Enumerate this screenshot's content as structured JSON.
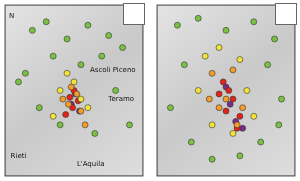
{
  "chart_data": [
    {
      "type": "scatter",
      "tick_labels": false,
      "grid": false,
      "xlim": [
        0,
        100
      ],
      "ylim": [
        0,
        100
      ],
      "annotations": [
        {
          "text": "N",
          "x": 5,
          "y": 93
        },
        {
          "text": "Ascoli Piceno",
          "x": 78,
          "y": 62
        },
        {
          "text": "Teramo",
          "x": 84,
          "y": 45
        },
        {
          "text": "L'Aquila",
          "x": 62,
          "y": 7
        },
        {
          "text": "Rieti",
          "x": 10,
          "y": 12
        }
      ],
      "series": [
        {
          "color": "#7ac143",
          "x": [
            20,
            30,
            45,
            60,
            75,
            85,
            15,
            35,
            70,
            55,
            25,
            80,
            40,
            65,
            90,
            10
          ],
          "values": [
            85,
            90,
            80,
            88,
            82,
            75,
            60,
            70,
            70,
            65,
            40,
            50,
            30,
            25,
            30,
            55
          ]
        },
        {
          "color": "#f2e33a",
          "x": [
            45,
            50,
            55,
            40,
            60,
            35
          ],
          "values": [
            60,
            55,
            45,
            50,
            40,
            35
          ]
        },
        {
          "color": "#f39c2b",
          "x": [
            48,
            52,
            46,
            55,
            42,
            58
          ],
          "values": [
            52,
            48,
            42,
            38,
            45,
            30
          ]
        },
        {
          "color": "#e2231a",
          "x": [
            50,
            47,
            53,
            49,
            44
          ],
          "values": [
            50,
            46,
            44,
            40,
            36
          ]
        },
        {
          "color": "#7b2a8c",
          "x": [
            51,
            48,
            54
          ],
          "values": [
            48,
            42,
            38
          ]
        }
      ]
    },
    {
      "type": "scatter",
      "tick_labels": false,
      "grid": false,
      "xlim": [
        0,
        100
      ],
      "ylim": [
        0,
        100
      ],
      "series": [
        {
          "color": "#7ac143",
          "x": [
            15,
            30,
            50,
            70,
            85,
            20,
            80,
            10,
            90,
            25,
            75,
            40,
            60,
            88
          ],
          "values": [
            88,
            92,
            85,
            90,
            80,
            65,
            65,
            40,
            45,
            20,
            20,
            10,
            12,
            30
          ]
        },
        {
          "color": "#f2e33a",
          "x": [
            35,
            45,
            60,
            30,
            65,
            40,
            70,
            55
          ],
          "values": [
            70,
            75,
            68,
            50,
            50,
            30,
            35,
            25
          ]
        },
        {
          "color": "#f39c2b",
          "x": [
            40,
            55,
            50,
            45,
            62,
            38,
            58
          ],
          "values": [
            60,
            62,
            45,
            40,
            40,
            45,
            30
          ]
        },
        {
          "color": "#e2231a",
          "x": [
            48,
            52,
            55,
            50,
            60,
            58,
            45
          ],
          "values": [
            55,
            50,
            45,
            38,
            35,
            28,
            48
          ]
        },
        {
          "color": "#7b2a8c",
          "x": [
            50,
            53,
            57,
            62
          ],
          "values": [
            52,
            42,
            32,
            28
          ]
        }
      ]
    }
  ]
}
